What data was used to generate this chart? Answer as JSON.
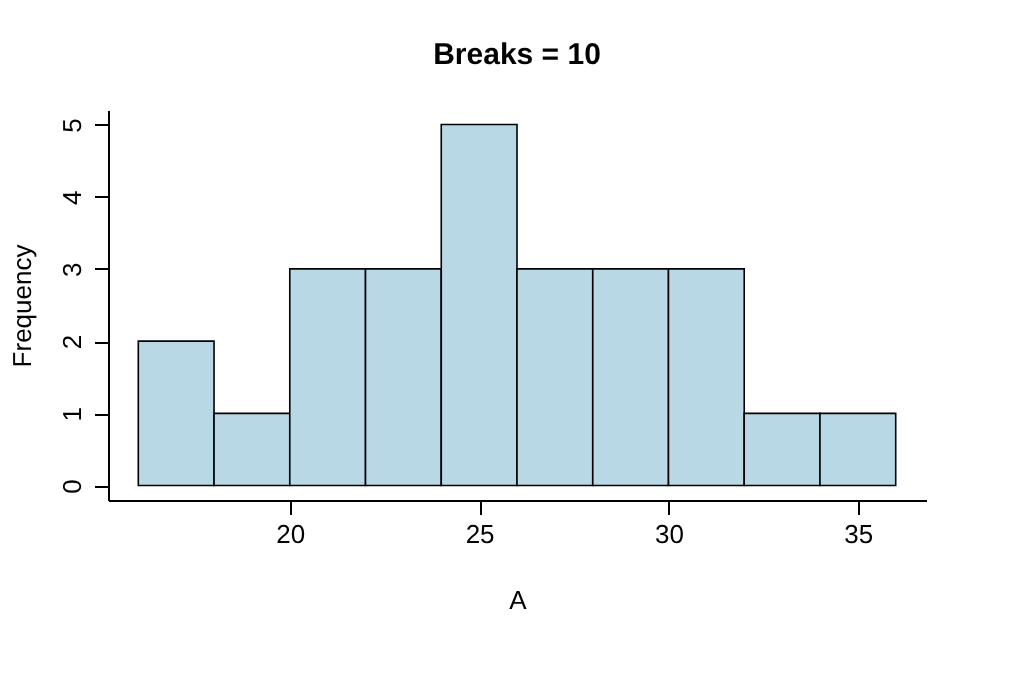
{
  "chart_data": {
    "type": "histogram",
    "title": "Breaks = 10",
    "xlabel": "A",
    "ylabel": "Frequency",
    "bins": [
      16,
      18,
      20,
      22,
      24,
      26,
      28,
      30,
      32,
      34,
      36
    ],
    "values": [
      2,
      1,
      3,
      3,
      5,
      3,
      3,
      3,
      1,
      1
    ],
    "color": "#b9d8e5",
    "xlim": [
      15.2,
      36.8
    ],
    "xticks": [
      20,
      25,
      30,
      35
    ],
    "ylim": [
      -0.2,
      5.2
    ],
    "yticks": [
      0,
      1,
      2,
      3,
      4,
      5
    ],
    "grid": false
  }
}
